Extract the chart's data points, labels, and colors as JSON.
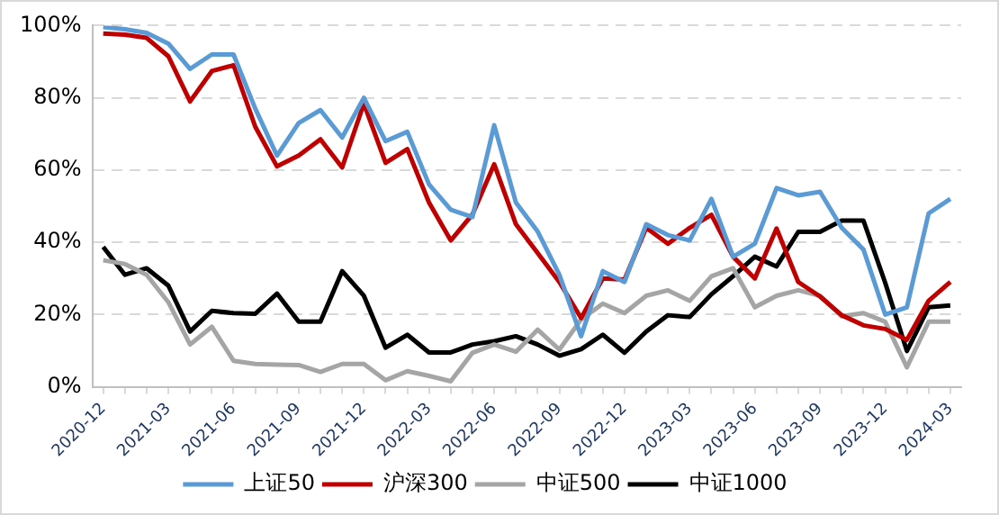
{
  "chart_data": {
    "type": "line",
    "categories": [
      "2020-12",
      null,
      null,
      "2021-03",
      null,
      null,
      "2021-06",
      null,
      null,
      "2021-09",
      null,
      null,
      "2021-12",
      null,
      null,
      "2022-03",
      null,
      null,
      "2022-06",
      null,
      null,
      "2022-09",
      null,
      null,
      "2022-12",
      null,
      null,
      "2023-03",
      null,
      null,
      "2023-06",
      null,
      null,
      "2023-09",
      null,
      null,
      "2023-12",
      null,
      null,
      "2024-03"
    ],
    "series": [
      {
        "name": "上证50",
        "color": "#5b9bd5",
        "values": [
          99.6,
          99,
          98,
          95,
          88,
          92,
          92,
          77,
          64,
          73,
          76.6,
          69,
          80,
          68,
          70.6,
          56,
          49,
          47,
          72.4,
          51,
          43,
          31,
          14,
          32,
          29,
          45,
          42,
          40.5,
          52,
          36,
          39.6,
          55,
          53,
          54,
          44,
          38,
          20,
          22,
          48,
          52
        ]
      },
      {
        "name": "沪深300",
        "color": "#c00000",
        "values": [
          97.8,
          97.5,
          96.6,
          91.5,
          79,
          87.4,
          89,
          72,
          61,
          64,
          68.5,
          60.7,
          78.4,
          62,
          65.8,
          51,
          40.5,
          47.7,
          61.6,
          45,
          37,
          29,
          19,
          30,
          29.7,
          44,
          39.6,
          44,
          47.6,
          36,
          30,
          43.8,
          29,
          25,
          19.8,
          17,
          16,
          13,
          23.8,
          29
        ]
      },
      {
        "name": "中证500",
        "color": "#a5a5a5",
        "values": [
          35,
          34,
          31,
          23.4,
          11.7,
          16.6,
          7.2,
          6.3,
          6.1,
          6,
          4.1,
          6.3,
          6.3,
          1.8,
          4.3,
          3,
          1.5,
          9.4,
          11.7,
          9.7,
          15.8,
          10.3,
          18.6,
          23,
          20.4,
          25.2,
          26.7,
          23.8,
          30.6,
          32.8,
          22,
          25.2,
          26.7,
          25.2,
          19.5,
          20.4,
          18,
          5.4,
          18,
          18
        ]
      },
      {
        "name": "中证1000",
        "color": "#000000",
        "values": [
          38.7,
          31,
          32.8,
          28,
          15.3,
          21,
          20.4,
          20.2,
          25.8,
          18,
          18,
          32,
          25.2,
          10.8,
          14.4,
          9.5,
          9.5,
          11.7,
          12.6,
          14,
          11.7,
          8.6,
          10.4,
          14.4,
          9.4,
          15.3,
          19.8,
          19.3,
          25.6,
          30.6,
          36,
          33.3,
          42.9,
          42.9,
          46,
          46,
          28.8,
          9.9,
          22,
          22.5
        ]
      }
    ],
    "ylim": [
      0,
      100
    ],
    "yticks": [
      {
        "value": 0,
        "label": "0%"
      },
      {
        "value": 20,
        "label": "20%"
      },
      {
        "value": 40,
        "label": "40%"
      },
      {
        "value": 60,
        "label": "60%"
      },
      {
        "value": 80,
        "label": "80%"
      },
      {
        "value": 100,
        "label": "100%"
      }
    ],
    "grid": "y",
    "legend": "bottom",
    "marker": "none",
    "line_style": "solid"
  }
}
